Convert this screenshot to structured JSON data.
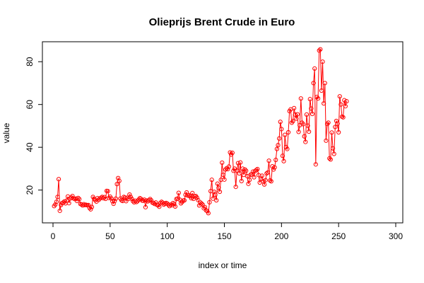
{
  "chart_data": {
    "type": "line",
    "title": "Olieprijs Brent Crude in Euro",
    "xlabel": "index or time",
    "ylabel": "value",
    "xlim": [
      0,
      300
    ],
    "ylim": [
      5,
      89
    ],
    "x_ticks": [
      0,
      50,
      100,
      150,
      200,
      250,
      300
    ],
    "y_ticks": [
      20,
      40,
      60,
      80
    ],
    "grid": false,
    "legend": "none",
    "line_color": "#ff0000",
    "series": [
      {
        "x_start": 1,
        "x_step": 1,
        "values": [
          12.5,
          13.2,
          14.5,
          16.8,
          25.1,
          10.3,
          13.0,
          13.9,
          14.2,
          14.7,
          13.8,
          15.1,
          17.0,
          13.9,
          16.0,
          16.5,
          17.2,
          16.1,
          15.8,
          16.0,
          14.9,
          16.3,
          15.8,
          13.5,
          13.2,
          12.8,
          13.4,
          13.0,
          13.1,
          12.9,
          13.0,
          11.6,
          11.0,
          12.1,
          16.8,
          15.9,
          15.3,
          14.6,
          16.2,
          15.4,
          16.0,
          16.4,
          16.8,
          16.2,
          16.7,
          15.9,
          19.6,
          19.5,
          16.3,
          16.9,
          16.1,
          14.8,
          13.6,
          14.9,
          16.0,
          22.8,
          25.6,
          24.3,
          16.0,
          15.2,
          14.9,
          16.8,
          16.5,
          14.8,
          16.4,
          15.9,
          17.9,
          16.8,
          15.9,
          14.8,
          14.3,
          15.0,
          14.4,
          14.8,
          15.5,
          16.2,
          15.9,
          15.1,
          15.0,
          15.5,
          12.0,
          15.1,
          14.7,
          15.3,
          15.8,
          15.2,
          14.1,
          13.9,
          13.5,
          14.2,
          13.1,
          12.9,
          12.2,
          14.0,
          14.5,
          14.1,
          13.2,
          13.6,
          14.0,
          13.7,
          13.1,
          12.5,
          13.2,
          12.9,
          13.9,
          13.5,
          12.3,
          15.8,
          16.0,
          18.7,
          15.5,
          13.8,
          14.4,
          15.1,
          15.2,
          17.8,
          18.9,
          17.4,
          17.6,
          17.1,
          16.2,
          18.6,
          15.9,
          17.0,
          17.2,
          16.5,
          15.3,
          12.8,
          14.2,
          13.7,
          13.2,
          11.5,
          12.0,
          10.5,
          10.2,
          9.2,
          14.3,
          19.5,
          24.8,
          16.0,
          19.2,
          17.8,
          15.2,
          23.0,
          21.1,
          19.2,
          24.8,
          32.8,
          27.1,
          24.9,
          29.6,
          30.2,
          29.8,
          31.0,
          37.6,
          36.6,
          37.4,
          29.0,
          30.0,
          21.5,
          29.1,
          32.6,
          27.8,
          32.9,
          24.2,
          30.0,
          27.1,
          29.6,
          29.0,
          26.5,
          22.9,
          24.8,
          27.2,
          27.3,
          28.6,
          26.0,
          28.9,
          29.4,
          29.8,
          27.0,
          23.5,
          25.1,
          26.7,
          24.1,
          22.6,
          24.6,
          27.8,
          28.2,
          33.7,
          24.5,
          24.1,
          31.1,
          29.6,
          30.6,
          34.1,
          39.2,
          41.0,
          44.1,
          51.9,
          48.5,
          36.0,
          33.5,
          45.8,
          40.1,
          39.2,
          47.0,
          56.9,
          57.7,
          51.5,
          52.2,
          58.3,
          55.3,
          53.4,
          55.4,
          47.2,
          50.3,
          62.8,
          51.5,
          50.8,
          45.1,
          42.5,
          55.3,
          50.1,
          47.3,
          62.5,
          58.1,
          55.6,
          70.0,
          76.8,
          32.0,
          63.5,
          62.8,
          85.2,
          85.8,
          66.5,
          80.0,
          60.5,
          70.0,
          43.1,
          50.9,
          51.5,
          34.8,
          34.3,
          46.9,
          39.5,
          36.9,
          49.5,
          52.3,
          51.0,
          47.0,
          63.8,
          60.0,
          54.3,
          54.0,
          62.0,
          59.2,
          61.5
        ]
      }
    ]
  }
}
